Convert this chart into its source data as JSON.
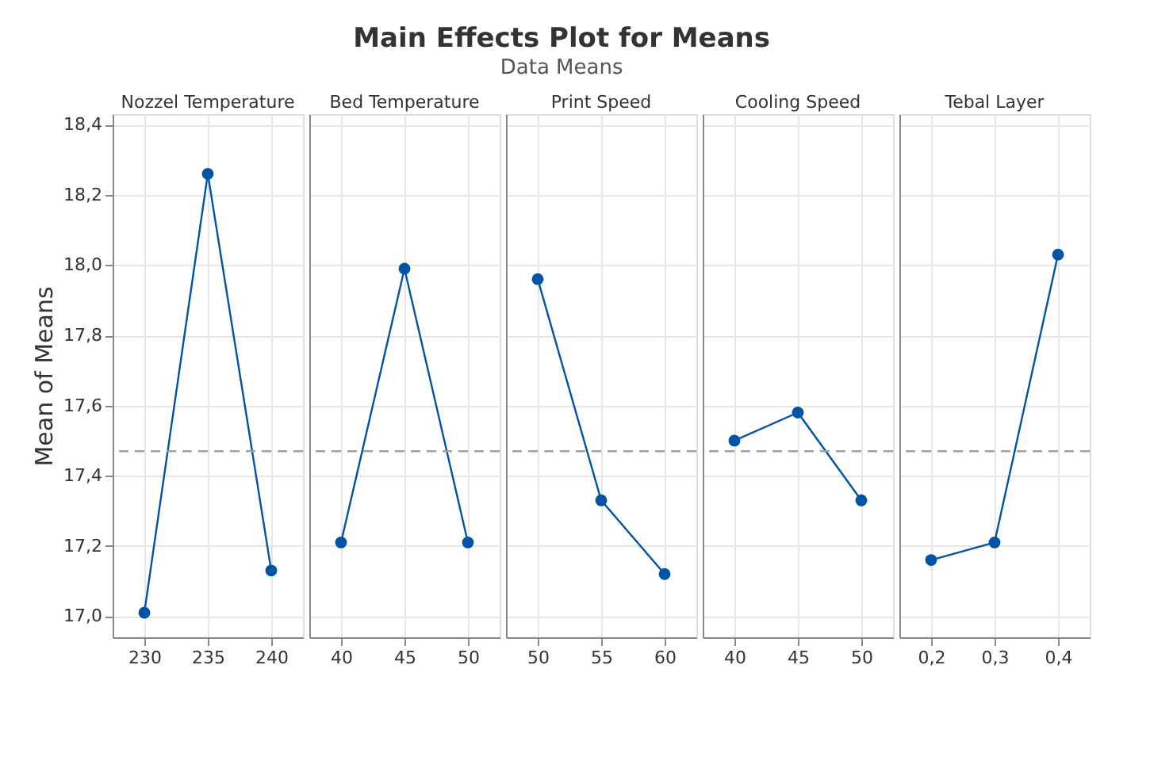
{
  "chart_data": [
    {
      "type": "line",
      "ylabel": "Mean of Means",
      "xlabel": "Nozzel Temperature",
      "categories": [
        "230",
        "235",
        "240"
      ],
      "series": [
        {
          "color": "#0054a6",
          "values": [
            17.01,
            18.26,
            17.13
          ]
        }
      ],
      "ylim": [
        16.94,
        18.43
      ],
      "yticks": [
        {
          "value": 17.0,
          "label": "17,0"
        },
        {
          "value": 17.2,
          "label": "17,2"
        },
        {
          "value": 17.4,
          "label": "17,4"
        },
        {
          "value": 17.6,
          "label": "17,6"
        },
        {
          "value": 17.8,
          "label": "17,8"
        },
        {
          "value": 18.0,
          "label": "18,0"
        },
        {
          "value": 18.2,
          "label": "18,2"
        },
        {
          "value": 18.4,
          "label": "18,4"
        }
      ],
      "ref_lines": [
        {
          "axis": "y",
          "value": 17.47,
          "color": "#a0a0a0",
          "line_style": "dashed"
        }
      ],
      "grid": true,
      "marker": "circle",
      "line_style": "solid"
    },
    {
      "type": "line",
      "xlabel": "Bed Temperature",
      "categories": [
        "40",
        "45",
        "50"
      ],
      "series": [
        {
          "color": "#0054a6",
          "values": [
            17.21,
            17.99,
            17.21
          ]
        }
      ],
      "ylim": [
        16.94,
        18.43
      ],
      "ref_lines": [
        {
          "axis": "y",
          "value": 17.47,
          "color": "#a0a0a0",
          "line_style": "dashed"
        }
      ],
      "grid": true,
      "marker": "circle",
      "line_style": "solid",
      "tick_labels": "x"
    },
    {
      "type": "line",
      "title": "Main Effects Plot for Means",
      "subtitle": "Data Means",
      "xlabel": "Print Speed",
      "categories": [
        "50",
        "55",
        "60"
      ],
      "series": [
        {
          "color": "#0054a6",
          "values": [
            17.96,
            17.33,
            17.12
          ]
        }
      ],
      "ylim": [
        16.94,
        18.43
      ],
      "ref_lines": [
        {
          "axis": "y",
          "value": 17.47,
          "color": "#a0a0a0",
          "line_style": "dashed"
        }
      ],
      "grid": true,
      "marker": "circle",
      "line_style": "solid",
      "tick_labels": "x"
    },
    {
      "type": "line",
      "xlabel": "Cooling Speed",
      "categories": [
        "40",
        "45",
        "50"
      ],
      "series": [
        {
          "color": "#0054a6",
          "values": [
            17.5,
            17.58,
            17.33
          ]
        }
      ],
      "ylim": [
        16.94,
        18.43
      ],
      "ref_lines": [
        {
          "axis": "y",
          "value": 17.47,
          "color": "#a0a0a0",
          "line_style": "dashed"
        }
      ],
      "grid": true,
      "marker": "circle",
      "line_style": "solid",
      "tick_labels": "x"
    },
    {
      "type": "line",
      "xlabel": "Tebal Layer",
      "categories": [
        "0,2",
        "0,3",
        "0,4"
      ],
      "series": [
        {
          "color": "#0054a6",
          "values": [
            17.16,
            17.21,
            18.03
          ]
        }
      ],
      "ylim": [
        16.94,
        18.43
      ],
      "ref_lines": [
        {
          "axis": "y",
          "value": 17.47,
          "color": "#a0a0a0",
          "line_style": "dashed"
        }
      ],
      "grid": true,
      "marker": "circle",
      "line_style": "solid",
      "tick_labels": "x"
    }
  ]
}
